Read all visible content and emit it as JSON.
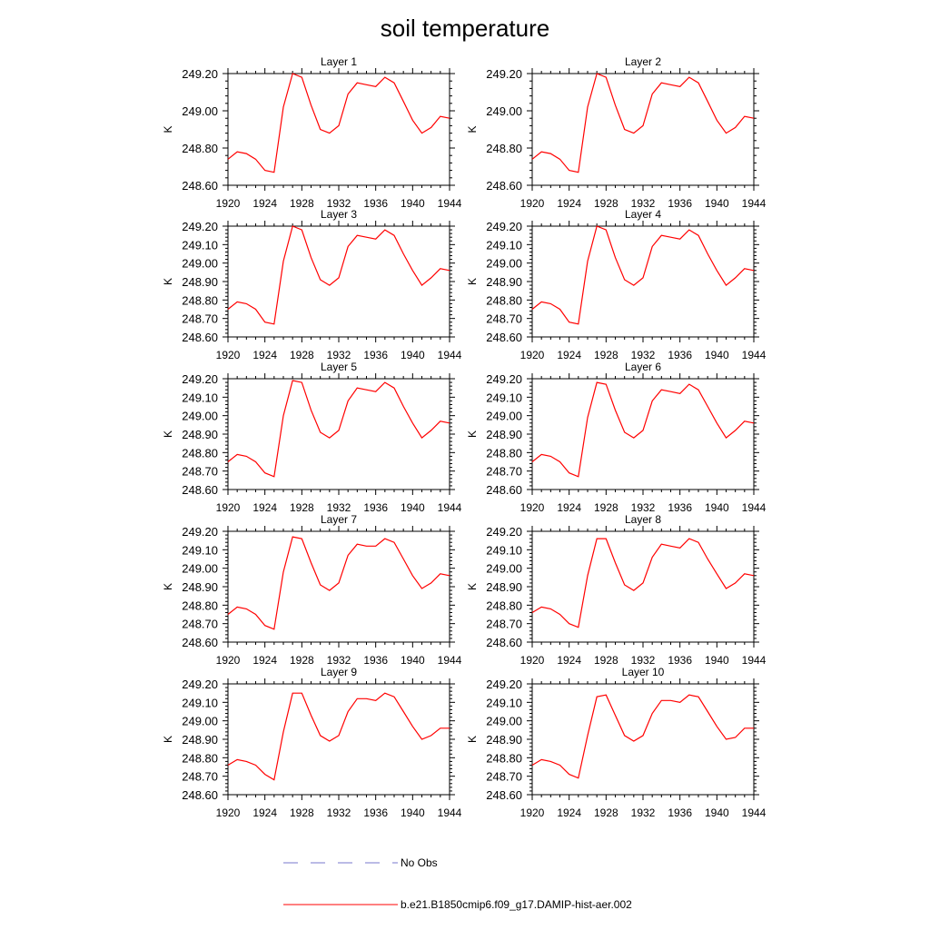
{
  "title": "soil temperature",
  "colors": {
    "model": "#ff0000",
    "obs": "#7777cc"
  },
  "legend": [
    {
      "label": "No Obs",
      "style": "dashed",
      "color": "#7777cc"
    },
    {
      "label": "b.e21.B1850cmip6.f09_g17.DAMIP-hist-aer.002",
      "style": "solid",
      "color": "#ff0000"
    }
  ],
  "chart_data": [
    {
      "type": "line",
      "title": "Layer 1",
      "ylabel": "K",
      "xlim": [
        1920,
        1944
      ],
      "ylim": [
        248.6,
        249.2
      ],
      "xticks": [
        1920,
        1924,
        1928,
        1932,
        1936,
        1940,
        1944
      ],
      "xtick_labels": [
        "1920",
        "1924",
        "1928",
        "1932",
        "1936",
        "1940",
        "1944"
      ],
      "yticks": [
        248.6,
        248.8,
        249.0,
        249.2
      ],
      "ytick_labels": [
        "248.60",
        "248.80",
        "249.00",
        "249.20"
      ],
      "series": [
        {
          "name": "b.e21.B1850cmip6.f09_g17.DAMIP-hist-aer.002",
          "x": [
            1920,
            1921,
            1922,
            1923,
            1924,
            1925,
            1926,
            1927,
            1928,
            1929,
            1930,
            1931,
            1932,
            1933,
            1934,
            1935,
            1936,
            1937,
            1938,
            1939,
            1940,
            1941,
            1942,
            1943,
            1944
          ],
          "y": [
            248.74,
            248.78,
            248.77,
            248.74,
            248.68,
            248.67,
            249.02,
            249.2,
            249.18,
            249.03,
            248.9,
            248.88,
            248.92,
            249.09,
            249.15,
            249.14,
            249.13,
            249.18,
            249.15,
            249.05,
            248.95,
            248.88,
            248.91,
            248.97,
            248.96
          ]
        }
      ]
    },
    {
      "type": "line",
      "title": "Layer 2",
      "ylabel": "K",
      "xlim": [
        1920,
        1944
      ],
      "ylim": [
        248.6,
        249.2
      ],
      "xticks": [
        1920,
        1924,
        1928,
        1932,
        1936,
        1940,
        1944
      ],
      "xtick_labels": [
        "1920",
        "1924",
        "1928",
        "1932",
        "1936",
        "1940",
        "1944"
      ],
      "yticks": [
        248.6,
        248.8,
        249.0,
        249.2
      ],
      "ytick_labels": [
        "248.60",
        "248.80",
        "249.00",
        "249.20"
      ],
      "series": [
        {
          "name": "b.e21.B1850cmip6.f09_g17.DAMIP-hist-aer.002",
          "x": [
            1920,
            1921,
            1922,
            1923,
            1924,
            1925,
            1926,
            1927,
            1928,
            1929,
            1930,
            1931,
            1932,
            1933,
            1934,
            1935,
            1936,
            1937,
            1938,
            1939,
            1940,
            1941,
            1942,
            1943,
            1944
          ],
          "y": [
            248.74,
            248.78,
            248.77,
            248.74,
            248.68,
            248.67,
            249.02,
            249.2,
            249.18,
            249.03,
            248.9,
            248.88,
            248.92,
            249.09,
            249.15,
            249.14,
            249.13,
            249.18,
            249.15,
            249.05,
            248.95,
            248.88,
            248.91,
            248.97,
            248.96
          ]
        }
      ]
    },
    {
      "type": "line",
      "title": "Layer 3",
      "ylabel": "K",
      "xlim": [
        1920,
        1944
      ],
      "ylim": [
        248.6,
        249.2
      ],
      "xticks": [
        1920,
        1924,
        1928,
        1932,
        1936,
        1940,
        1944
      ],
      "xtick_labels": [
        "1920",
        "1924",
        "1928",
        "1932",
        "1936",
        "1940",
        "1944"
      ],
      "yticks": [
        248.6,
        248.7,
        248.8,
        248.9,
        249.0,
        249.1,
        249.2
      ],
      "ytick_labels": [
        "248.60",
        "248.70",
        "248.80",
        "248.90",
        "249.00",
        "249.10",
        "249.20"
      ],
      "series": [
        {
          "name": "b.e21.B1850cmip6.f09_g17.DAMIP-hist-aer.002",
          "x": [
            1920,
            1921,
            1922,
            1923,
            1924,
            1925,
            1926,
            1927,
            1928,
            1929,
            1930,
            1931,
            1932,
            1933,
            1934,
            1935,
            1936,
            1937,
            1938,
            1939,
            1940,
            1941,
            1942,
            1943,
            1944
          ],
          "y": [
            248.75,
            248.79,
            248.78,
            248.75,
            248.68,
            248.67,
            249.01,
            249.2,
            249.18,
            249.03,
            248.91,
            248.88,
            248.92,
            249.09,
            249.15,
            249.14,
            249.13,
            249.18,
            249.15,
            249.05,
            248.96,
            248.88,
            248.92,
            248.97,
            248.96
          ]
        }
      ]
    },
    {
      "type": "line",
      "title": "Layer 4",
      "ylabel": "K",
      "xlim": [
        1920,
        1944
      ],
      "ylim": [
        248.6,
        249.2
      ],
      "xticks": [
        1920,
        1924,
        1928,
        1932,
        1936,
        1940,
        1944
      ],
      "xtick_labels": [
        "1920",
        "1924",
        "1928",
        "1932",
        "1936",
        "1940",
        "1944"
      ],
      "yticks": [
        248.6,
        248.7,
        248.8,
        248.9,
        249.0,
        249.1,
        249.2
      ],
      "ytick_labels": [
        "248.60",
        "248.70",
        "248.80",
        "248.90",
        "249.00",
        "249.10",
        "249.20"
      ],
      "series": [
        {
          "name": "b.e21.B1850cmip6.f09_g17.DAMIP-hist-aer.002",
          "x": [
            1920,
            1921,
            1922,
            1923,
            1924,
            1925,
            1926,
            1927,
            1928,
            1929,
            1930,
            1931,
            1932,
            1933,
            1934,
            1935,
            1936,
            1937,
            1938,
            1939,
            1940,
            1941,
            1942,
            1943,
            1944
          ],
          "y": [
            248.75,
            248.79,
            248.78,
            248.75,
            248.68,
            248.67,
            249.01,
            249.2,
            249.18,
            249.03,
            248.91,
            248.88,
            248.92,
            249.09,
            249.15,
            249.14,
            249.13,
            249.18,
            249.15,
            249.05,
            248.96,
            248.88,
            248.92,
            248.97,
            248.96
          ]
        }
      ]
    },
    {
      "type": "line",
      "title": "Layer 5",
      "ylabel": "K",
      "xlim": [
        1920,
        1944
      ],
      "ylim": [
        248.6,
        249.2
      ],
      "xticks": [
        1920,
        1924,
        1928,
        1932,
        1936,
        1940,
        1944
      ],
      "xtick_labels": [
        "1920",
        "1924",
        "1928",
        "1932",
        "1936",
        "1940",
        "1944"
      ],
      "yticks": [
        248.6,
        248.7,
        248.8,
        248.9,
        249.0,
        249.1,
        249.2
      ],
      "ytick_labels": [
        "248.60",
        "248.70",
        "248.80",
        "248.90",
        "249.00",
        "249.10",
        "249.20"
      ],
      "series": [
        {
          "name": "b.e21.B1850cmip6.f09_g17.DAMIP-hist-aer.002",
          "x": [
            1920,
            1921,
            1922,
            1923,
            1924,
            1925,
            1926,
            1927,
            1928,
            1929,
            1930,
            1931,
            1932,
            1933,
            1934,
            1935,
            1936,
            1937,
            1938,
            1939,
            1940,
            1941,
            1942,
            1943,
            1944
          ],
          "y": [
            248.75,
            248.79,
            248.78,
            248.75,
            248.69,
            248.67,
            249.0,
            249.19,
            249.18,
            249.03,
            248.91,
            248.88,
            248.92,
            249.08,
            249.15,
            249.14,
            249.13,
            249.18,
            249.15,
            249.05,
            248.96,
            248.88,
            248.92,
            248.97,
            248.96
          ]
        }
      ]
    },
    {
      "type": "line",
      "title": "Layer 6",
      "ylabel": "K",
      "xlim": [
        1920,
        1944
      ],
      "ylim": [
        248.6,
        249.2
      ],
      "xticks": [
        1920,
        1924,
        1928,
        1932,
        1936,
        1940,
        1944
      ],
      "xtick_labels": [
        "1920",
        "1924",
        "1928",
        "1932",
        "1936",
        "1940",
        "1944"
      ],
      "yticks": [
        248.6,
        248.7,
        248.8,
        248.9,
        249.0,
        249.1,
        249.2
      ],
      "ytick_labels": [
        "248.60",
        "248.70",
        "248.80",
        "248.90",
        "249.00",
        "249.10",
        "249.20"
      ],
      "series": [
        {
          "name": "b.e21.B1850cmip6.f09_g17.DAMIP-hist-aer.002",
          "x": [
            1920,
            1921,
            1922,
            1923,
            1924,
            1925,
            1926,
            1927,
            1928,
            1929,
            1930,
            1931,
            1932,
            1933,
            1934,
            1935,
            1936,
            1937,
            1938,
            1939,
            1940,
            1941,
            1942,
            1943,
            1944
          ],
          "y": [
            248.75,
            248.79,
            248.78,
            248.75,
            248.69,
            248.67,
            248.99,
            249.18,
            249.17,
            249.03,
            248.91,
            248.88,
            248.92,
            249.08,
            249.14,
            249.13,
            249.12,
            249.17,
            249.14,
            249.05,
            248.96,
            248.88,
            248.92,
            248.97,
            248.96
          ]
        }
      ]
    },
    {
      "type": "line",
      "title": "Layer 7",
      "ylabel": "K",
      "xlim": [
        1920,
        1944
      ],
      "ylim": [
        248.6,
        249.2
      ],
      "xticks": [
        1920,
        1924,
        1928,
        1932,
        1936,
        1940,
        1944
      ],
      "xtick_labels": [
        "1920",
        "1924",
        "1928",
        "1932",
        "1936",
        "1940",
        "1944"
      ],
      "yticks": [
        248.6,
        248.7,
        248.8,
        248.9,
        249.0,
        249.1,
        249.2
      ],
      "ytick_labels": [
        "248.60",
        "248.70",
        "248.80",
        "248.90",
        "249.00",
        "249.10",
        "249.20"
      ],
      "series": [
        {
          "name": "b.e21.B1850cmip6.f09_g17.DAMIP-hist-aer.002",
          "x": [
            1920,
            1921,
            1922,
            1923,
            1924,
            1925,
            1926,
            1927,
            1928,
            1929,
            1930,
            1931,
            1932,
            1933,
            1934,
            1935,
            1936,
            1937,
            1938,
            1939,
            1940,
            1941,
            1942,
            1943,
            1944
          ],
          "y": [
            248.75,
            248.79,
            248.78,
            248.75,
            248.69,
            248.67,
            248.98,
            249.17,
            249.16,
            249.03,
            248.91,
            248.88,
            248.92,
            249.07,
            249.13,
            249.12,
            249.12,
            249.16,
            249.14,
            249.05,
            248.96,
            248.89,
            248.92,
            248.97,
            248.96
          ]
        }
      ]
    },
    {
      "type": "line",
      "title": "Layer 8",
      "ylabel": "K",
      "xlim": [
        1920,
        1944
      ],
      "ylim": [
        248.6,
        249.2
      ],
      "xticks": [
        1920,
        1924,
        1928,
        1932,
        1936,
        1940,
        1944
      ],
      "xtick_labels": [
        "1920",
        "1924",
        "1928",
        "1932",
        "1936",
        "1940",
        "1944"
      ],
      "yticks": [
        248.6,
        248.7,
        248.8,
        248.9,
        249.0,
        249.1,
        249.2
      ],
      "ytick_labels": [
        "248.60",
        "248.70",
        "248.80",
        "248.90",
        "249.00",
        "249.10",
        "249.20"
      ],
      "series": [
        {
          "name": "b.e21.B1850cmip6.f09_g17.DAMIP-hist-aer.002",
          "x": [
            1920,
            1921,
            1922,
            1923,
            1924,
            1925,
            1926,
            1927,
            1928,
            1929,
            1930,
            1931,
            1932,
            1933,
            1934,
            1935,
            1936,
            1937,
            1938,
            1939,
            1940,
            1941,
            1942,
            1943,
            1944
          ],
          "y": [
            248.76,
            248.79,
            248.78,
            248.75,
            248.7,
            248.68,
            248.96,
            249.16,
            249.16,
            249.03,
            248.91,
            248.88,
            248.92,
            249.06,
            249.13,
            249.12,
            249.11,
            249.16,
            249.14,
            249.05,
            248.97,
            248.89,
            248.92,
            248.97,
            248.96
          ]
        }
      ]
    },
    {
      "type": "line",
      "title": "Layer 9",
      "ylabel": "K",
      "xlim": [
        1920,
        1944
      ],
      "ylim": [
        248.6,
        249.2
      ],
      "xticks": [
        1920,
        1924,
        1928,
        1932,
        1936,
        1940,
        1944
      ],
      "xtick_labels": [
        "1920",
        "1924",
        "1928",
        "1932",
        "1936",
        "1940",
        "1944"
      ],
      "yticks": [
        248.6,
        248.7,
        248.8,
        248.9,
        249.0,
        249.1,
        249.2
      ],
      "ytick_labels": [
        "248.60",
        "248.70",
        "248.80",
        "248.90",
        "249.00",
        "249.10",
        "249.20"
      ],
      "series": [
        {
          "name": "b.e21.B1850cmip6.f09_g17.DAMIP-hist-aer.002",
          "x": [
            1920,
            1921,
            1922,
            1923,
            1924,
            1925,
            1926,
            1927,
            1928,
            1929,
            1930,
            1931,
            1932,
            1933,
            1934,
            1935,
            1936,
            1937,
            1938,
            1939,
            1940,
            1941,
            1942,
            1943,
            1944
          ],
          "y": [
            248.76,
            248.79,
            248.78,
            248.76,
            248.71,
            248.68,
            248.94,
            249.15,
            249.15,
            249.03,
            248.92,
            248.89,
            248.92,
            249.05,
            249.12,
            249.12,
            249.11,
            249.15,
            249.13,
            249.05,
            248.97,
            248.9,
            248.92,
            248.96,
            248.96
          ]
        }
      ]
    },
    {
      "type": "line",
      "title": "Layer 10",
      "ylabel": "K",
      "xlim": [
        1920,
        1944
      ],
      "ylim": [
        248.6,
        249.2
      ],
      "xticks": [
        1920,
        1924,
        1928,
        1932,
        1936,
        1940,
        1944
      ],
      "xtick_labels": [
        "1920",
        "1924",
        "1928",
        "1932",
        "1936",
        "1940",
        "1944"
      ],
      "yticks": [
        248.6,
        248.7,
        248.8,
        248.9,
        249.0,
        249.1,
        249.2
      ],
      "ytick_labels": [
        "248.60",
        "248.70",
        "248.80",
        "248.90",
        "249.00",
        "249.10",
        "249.20"
      ],
      "series": [
        {
          "name": "b.e21.B1850cmip6.f09_g17.DAMIP-hist-aer.002",
          "x": [
            1920,
            1921,
            1922,
            1923,
            1924,
            1925,
            1926,
            1927,
            1928,
            1929,
            1930,
            1931,
            1932,
            1933,
            1934,
            1935,
            1936,
            1937,
            1938,
            1939,
            1940,
            1941,
            1942,
            1943,
            1944
          ],
          "y": [
            248.76,
            248.79,
            248.78,
            248.76,
            248.71,
            248.69,
            248.92,
            249.13,
            249.14,
            249.03,
            248.92,
            248.89,
            248.92,
            249.04,
            249.11,
            249.11,
            249.1,
            249.14,
            249.13,
            249.05,
            248.97,
            248.9,
            248.91,
            248.96,
            248.96
          ]
        }
      ]
    }
  ]
}
